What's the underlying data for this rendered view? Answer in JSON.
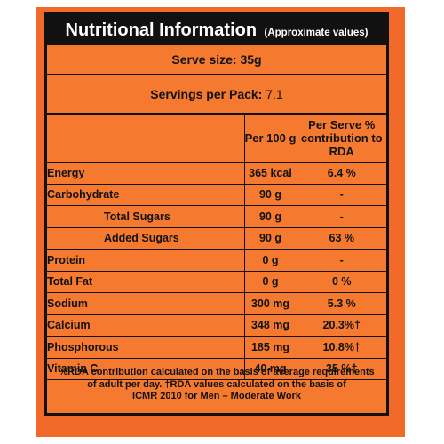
{
  "header": {
    "title": "Nutritional Information",
    "subtitle": "(Approximate values)"
  },
  "serve_size": "Serve size: 35g",
  "servings_per_pack": {
    "label": "Servings per Pack:",
    "value": "7.1"
  },
  "table": {
    "columns": [
      "",
      "Per 100 g",
      "Per Serve % contribution to RDA"
    ],
    "rows": [
      {
        "name": "Energy",
        "per100g": "365 kcal",
        "rda": "6.4 %"
      },
      {
        "name": "Carbohydrate",
        "per100g": "90 g",
        "rda": "-"
      },
      {
        "name": "Total Sugars",
        "per100g": "90 g",
        "rda": "-"
      },
      {
        "name": "Added Sugars",
        "per100g": "90 g",
        "rda": "63 %"
      },
      {
        "name": "Protein",
        "per100g": "0 g",
        "rda": "-"
      },
      {
        "name": "Total Fat",
        "per100g": "0 g",
        "rda": "0 %"
      },
      {
        "name": "Sodium",
        "per100g": "300 mg",
        "rda": "5.3 %"
      },
      {
        "name": "Calcium",
        "per100g": "348 mg",
        "rda": "20.3%†"
      },
      {
        "name": "Phosphorous",
        "per100g": "185 mg",
        "rda": "10.8%†"
      },
      {
        "name": "Vitamin C",
        "per100g": "40 mg",
        "rda": "35 %†"
      }
    ]
  },
  "footnote": [
    "%RDA contribution calculated on the basis of average requirements",
    "of adult per day. †RDA values calculated on the basis of",
    "ICMR 2010 for Men – Moderate Work"
  ],
  "colors": {
    "label_orange": "#f57a30",
    "background_orange": "#f26a2a",
    "title_bar": "#111111"
  }
}
